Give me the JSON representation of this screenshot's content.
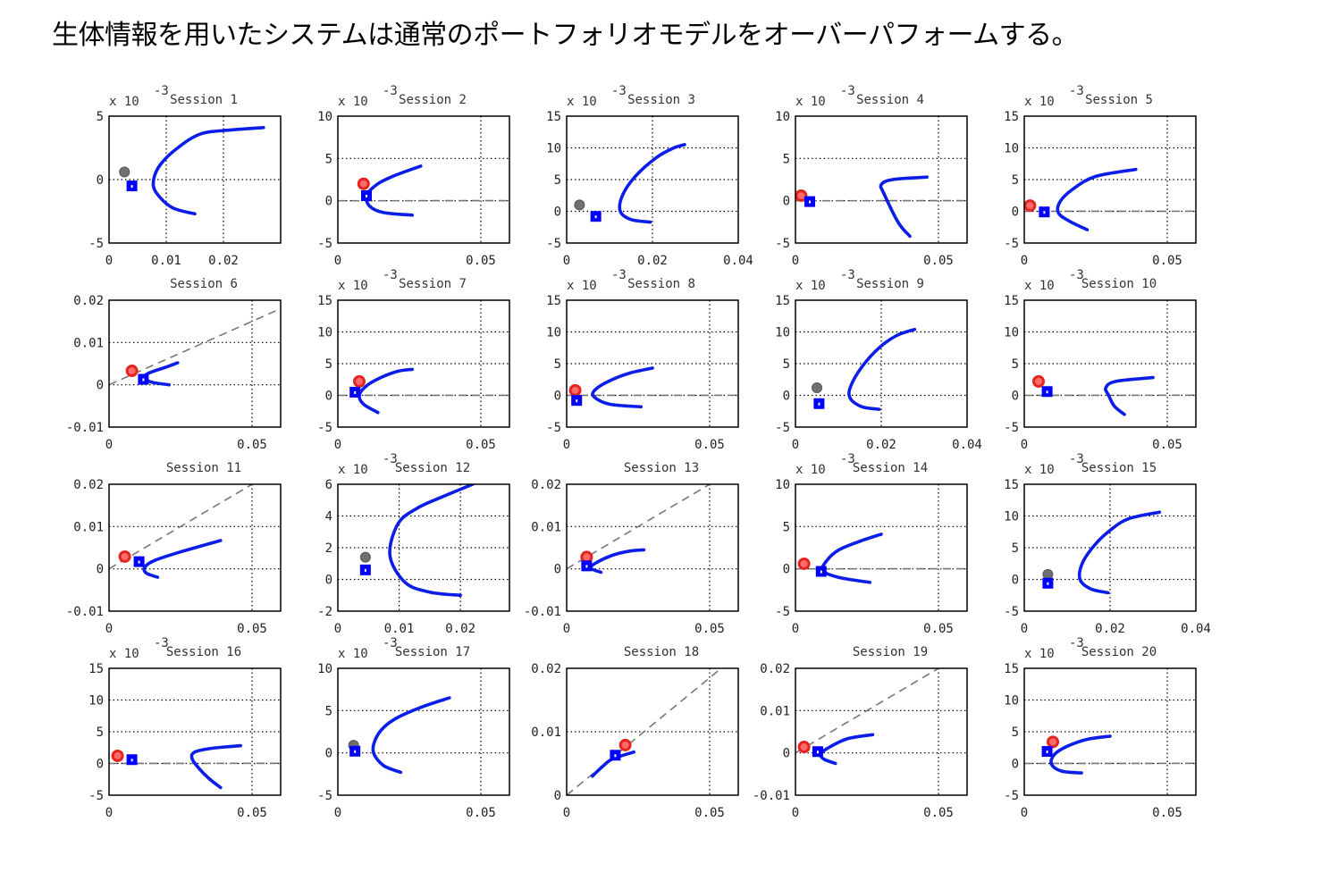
{
  "page": {
    "title": "生体情報を用いたシステムは通常のポートフォリオモデルをオーバーパフォームする。"
  },
  "colors": {
    "frontier": "#0a1ee8",
    "biometric_marker": "#e52420",
    "conventional_marker": "#707070",
    "portfolio_marker": "#0000ff",
    "reference_line": "#777777"
  },
  "chart_data": [
    {
      "type": "line",
      "title": "Session 1",
      "multiplier": "x 10",
      "exponent": "-3",
      "xlim": [
        0,
        0.03
      ],
      "ylim": [
        -5,
        5
      ],
      "xticks": [
        0,
        0.01,
        0.02
      ],
      "yticks": [
        -5,
        0,
        5
      ],
      "ref_slope": null,
      "frontier": [
        [
          0.015,
          -2.7
        ],
        [
          0.011,
          -2.2
        ],
        [
          0.0082,
          -1.0
        ],
        [
          0.0078,
          0
        ],
        [
          0.009,
          1.2
        ],
        [
          0.012,
          2.5
        ],
        [
          0.016,
          3.6
        ],
        [
          0.021,
          3.9
        ],
        [
          0.027,
          4.1
        ]
      ],
      "conventional": [
        0.0027,
        0.6
      ],
      "biometric": null,
      "portfolio": [
        0.004,
        -0.5
      ]
    },
    {
      "type": "line",
      "title": "Session 2",
      "multiplier": "x 10",
      "exponent": "-3",
      "xlim": [
        0,
        0.06
      ],
      "ylim": [
        -5,
        10
      ],
      "xticks": [
        0,
        0.05
      ],
      "yticks": [
        -5,
        0,
        5,
        10
      ],
      "ref_slope": 0.2,
      "frontier": [
        [
          0.026,
          -1.7
        ],
        [
          0.016,
          -1.4
        ],
        [
          0.011,
          -0.6
        ],
        [
          0.0102,
          0.7
        ],
        [
          0.014,
          2.0
        ],
        [
          0.02,
          3.0
        ],
        [
          0.029,
          4.1
        ]
      ],
      "conventional": null,
      "biometric": [
        0.009,
        2.0
      ],
      "portfolio": [
        0.01,
        0.6
      ]
    },
    {
      "type": "line",
      "title": "Session 3",
      "multiplier": "x 10",
      "exponent": "-3",
      "xlim": [
        0,
        0.04
      ],
      "ylim": [
        -5,
        15
      ],
      "xticks": [
        0,
        0.02,
        0.04
      ],
      "yticks": [
        -5,
        0,
        5,
        10,
        15
      ],
      "ref_slope": null,
      "frontier": [
        [
          0.0195,
          -1.7
        ],
        [
          0.015,
          -1.3
        ],
        [
          0.0125,
          0
        ],
        [
          0.013,
          2.5
        ],
        [
          0.016,
          5.5
        ],
        [
          0.021,
          8.5
        ],
        [
          0.025,
          10.0
        ],
        [
          0.0275,
          10.5
        ]
      ],
      "conventional": [
        0.003,
        1.0
      ],
      "biometric": null,
      "portfolio": [
        0.0068,
        -0.8
      ]
    },
    {
      "type": "line",
      "title": "Session 4",
      "multiplier": "x 10",
      "exponent": "-3",
      "xlim": [
        0,
        0.06
      ],
      "ylim": [
        -5,
        10
      ],
      "xticks": [
        0,
        0.05
      ],
      "yticks": [
        -5,
        0,
        5,
        10
      ],
      "ref_slope": 0.2,
      "frontier": [
        [
          0.04,
          -4.2
        ],
        [
          0.036,
          -2.6
        ],
        [
          0.031,
          0.8
        ],
        [
          0.03,
          1.9
        ],
        [
          0.034,
          2.5
        ],
        [
          0.046,
          2.8
        ]
      ],
      "conventional": null,
      "biometric": [
        0.002,
        0.6
      ],
      "portfolio": [
        0.005,
        -0.1
      ]
    },
    {
      "type": "line",
      "title": "Session 5",
      "multiplier": "x 10",
      "exponent": "-3",
      "xlim": [
        0,
        0.06
      ],
      "ylim": [
        -5,
        15
      ],
      "xticks": [
        0,
        0.05
      ],
      "yticks": [
        -5,
        0,
        5,
        10,
        15
      ],
      "ref_slope": 0.3,
      "frontier": [
        [
          0.022,
          -2.9
        ],
        [
          0.016,
          -1.6
        ],
        [
          0.012,
          -0.3
        ],
        [
          0.0125,
          1.5
        ],
        [
          0.017,
          3.5
        ],
        [
          0.025,
          5.5
        ],
        [
          0.039,
          6.6
        ]
      ],
      "conventional": null,
      "biometric": [
        0.002,
        0.9
      ],
      "portfolio": [
        0.007,
        -0.1
      ]
    },
    {
      "type": "line",
      "title": "Session 6",
      "multiplier": "",
      "exponent": "",
      "xlim": [
        0,
        0.06
      ],
      "ylim": [
        -0.01,
        0.02
      ],
      "xticks": [
        0,
        0.05
      ],
      "yticks": [
        -0.01,
        0,
        0.01,
        0.02
      ],
      "ref_slope": 0.3,
      "frontier": [
        [
          0.021,
          0
        ],
        [
          0.015,
          0.0006
        ],
        [
          0.012,
          0.0016
        ],
        [
          0.014,
          0.0028
        ],
        [
          0.02,
          0.0042
        ],
        [
          0.024,
          0.0052
        ]
      ],
      "conventional": null,
      "biometric": [
        0.008,
        0.0033
      ],
      "portfolio": [
        0.012,
        0.0013
      ]
    },
    {
      "type": "line",
      "title": "Session 7",
      "multiplier": "x 10",
      "exponent": "-3",
      "xlim": [
        0,
        0.06
      ],
      "ylim": [
        -5,
        15
      ],
      "xticks": [
        0,
        0.05
      ],
      "yticks": [
        -5,
        0,
        5,
        10,
        15
      ],
      "ref_slope": 0.25,
      "frontier": [
        [
          0.014,
          -2.7
        ],
        [
          0.009,
          -1.4
        ],
        [
          0.0075,
          0
        ],
        [
          0.01,
          1.5
        ],
        [
          0.015,
          2.8
        ],
        [
          0.021,
          3.8
        ],
        [
          0.026,
          4.1
        ]
      ],
      "conventional": null,
      "biometric": [
        0.0075,
        2.2
      ],
      "portfolio": [
        0.006,
        0.5
      ]
    },
    {
      "type": "line",
      "title": "Session 8",
      "multiplier": "x 10",
      "exponent": "-3",
      "xlim": [
        0,
        0.06
      ],
      "ylim": [
        -5,
        15
      ],
      "xticks": [
        0,
        0.05
      ],
      "yticks": [
        -5,
        0,
        5,
        10,
        15
      ],
      "ref_slope": 0.3,
      "frontier": [
        [
          0.026,
          -1.8
        ],
        [
          0.015,
          -1.4
        ],
        [
          0.0095,
          -0.2
        ],
        [
          0.01,
          0.9
        ],
        [
          0.015,
          2.3
        ],
        [
          0.022,
          3.5
        ],
        [
          0.03,
          4.3
        ]
      ],
      "conventional": null,
      "biometric": [
        0.003,
        0.8
      ],
      "portfolio": [
        0.0035,
        -0.8
      ]
    },
    {
      "type": "line",
      "title": "Session 9",
      "multiplier": "x 10",
      "exponent": "-3",
      "xlim": [
        0,
        0.04
      ],
      "ylim": [
        -5,
        15
      ],
      "xticks": [
        0,
        0.02,
        0.04
      ],
      "yticks": [
        -5,
        0,
        5,
        10,
        15
      ],
      "ref_slope": null,
      "frontier": [
        [
          0.0195,
          -2.2
        ],
        [
          0.0155,
          -1.8
        ],
        [
          0.0128,
          -0.5
        ],
        [
          0.0128,
          1.3
        ],
        [
          0.0155,
          4.5
        ],
        [
          0.0195,
          7.5
        ],
        [
          0.0235,
          9.4
        ],
        [
          0.0278,
          10.4
        ]
      ],
      "conventional": [
        0.005,
        1.2
      ],
      "biometric": null,
      "portfolio": [
        0.0055,
        -1.3
      ]
    },
    {
      "type": "line",
      "title": "Session 10",
      "multiplier": "x 10",
      "exponent": "-3",
      "xlim": [
        0,
        0.06
      ],
      "ylim": [
        -5,
        15
      ],
      "xticks": [
        0,
        0.05
      ],
      "yticks": [
        -5,
        0,
        5,
        10,
        15
      ],
      "ref_slope": 0.4,
      "frontier": [
        [
          0.035,
          -3.0
        ],
        [
          0.0315,
          -1.7
        ],
        [
          0.0295,
          0
        ],
        [
          0.0285,
          1.2
        ],
        [
          0.032,
          2.2
        ],
        [
          0.045,
          2.8
        ]
      ],
      "conventional": null,
      "biometric": [
        0.005,
        2.2
      ],
      "portfolio": [
        0.008,
        0.6
      ]
    },
    {
      "type": "line",
      "title": "Session 11",
      "multiplier": "",
      "exponent": "",
      "xlim": [
        0,
        0.06
      ],
      "ylim": [
        -0.01,
        0.02
      ],
      "xticks": [
        0,
        0.05
      ],
      "yticks": [
        -0.01,
        0,
        0.01,
        0.02
      ],
      "ref_slope": 0.4,
      "frontier": [
        [
          0.017,
          -0.002
        ],
        [
          0.013,
          -0.001
        ],
        [
          0.0125,
          0.0004
        ],
        [
          0.016,
          0.002
        ],
        [
          0.025,
          0.004
        ],
        [
          0.039,
          0.0067
        ]
      ],
      "conventional": null,
      "biometric": [
        0.0055,
        0.0029
      ],
      "portfolio": [
        0.0105,
        0.0017
      ]
    },
    {
      "type": "line",
      "title": "Session 12",
      "multiplier": "x 10",
      "exponent": "-3",
      "xlim": [
        0,
        0.028
      ],
      "ylim": [
        -2,
        6
      ],
      "xticks": [
        0,
        0.01,
        0.02
      ],
      "yticks": [
        -2,
        0,
        2,
        4,
        6
      ],
      "ref_slope": null,
      "frontier": [
        [
          0.02,
          -1.0
        ],
        [
          0.015,
          -0.8
        ],
        [
          0.011,
          -0.2
        ],
        [
          0.0085,
          1.5
        ],
        [
          0.0098,
          3.5
        ],
        [
          0.013,
          4.5
        ],
        [
          0.017,
          5.2
        ],
        [
          0.022,
          6.0
        ]
      ],
      "conventional": [
        0.0045,
        1.4
      ],
      "biometric": null,
      "portfolio": [
        0.0045,
        0.6
      ]
    },
    {
      "type": "line",
      "title": "Session 13",
      "multiplier": "",
      "exponent": "",
      "xlim": [
        0,
        0.06
      ],
      "ylim": [
        -0.01,
        0.02
      ],
      "xticks": [
        0,
        0.05
      ],
      "yticks": [
        -0.01,
        0,
        0.01,
        0.02
      ],
      "ref_slope": 0.4,
      "frontier": [
        [
          0.012,
          -0.0008
        ],
        [
          0.0085,
          0.0001
        ],
        [
          0.01,
          0.0013
        ],
        [
          0.016,
          0.0032
        ],
        [
          0.022,
          0.0042
        ],
        [
          0.027,
          0.0045
        ]
      ],
      "conventional": null,
      "biometric": [
        0.007,
        0.0028
      ],
      "portfolio": [
        0.007,
        0.0007
      ]
    },
    {
      "type": "line",
      "title": "Session 14",
      "multiplier": "x 10",
      "exponent": "-3",
      "xlim": [
        0,
        0.06
      ],
      "ylim": [
        -5,
        10
      ],
      "xticks": [
        0,
        0.05
      ],
      "yticks": [
        -5,
        0,
        5,
        10
      ],
      "ref_slope": 0.2,
      "frontier": [
        [
          0.026,
          -1.6
        ],
        [
          0.015,
          -1.0
        ],
        [
          0.0095,
          -0.2
        ],
        [
          0.011,
          1.0
        ],
        [
          0.015,
          2.2
        ],
        [
          0.022,
          3.2
        ],
        [
          0.03,
          4.1
        ]
      ],
      "conventional": null,
      "biometric": [
        0.003,
        0.6
      ],
      "portfolio": [
        0.009,
        -0.3
      ]
    },
    {
      "type": "line",
      "title": "Session 15",
      "multiplier": "x 10",
      "exponent": "-3",
      "xlim": [
        0,
        0.04
      ],
      "ylim": [
        -5,
        15
      ],
      "xticks": [
        0,
        0.02,
        0.04
      ],
      "yticks": [
        -5,
        0,
        5,
        10,
        15
      ],
      "ref_slope": null,
      "frontier": [
        [
          0.0195,
          -2.1
        ],
        [
          0.0155,
          -1.5
        ],
        [
          0.013,
          0
        ],
        [
          0.0135,
          2.5
        ],
        [
          0.0165,
          5.5
        ],
        [
          0.0205,
          8.0
        ],
        [
          0.0245,
          9.6
        ],
        [
          0.0315,
          10.6
        ]
      ],
      "conventional": [
        0.0055,
        0.8
      ],
      "biometric": null,
      "portfolio": [
        0.0055,
        -0.6
      ]
    },
    {
      "type": "line",
      "title": "Session 16",
      "multiplier": "x 10",
      "exponent": "-3",
      "xlim": [
        0,
        0.06
      ],
      "ylim": [
        -5,
        15
      ],
      "xticks": [
        0,
        0.05
      ],
      "yticks": [
        -5,
        0,
        5,
        10,
        15
      ],
      "ref_slope": 0.45,
      "frontier": [
        [
          0.039,
          -3.8
        ],
        [
          0.035,
          -2.4
        ],
        [
          0.0315,
          -0.8
        ],
        [
          0.029,
          0.8
        ],
        [
          0.03,
          1.8
        ],
        [
          0.036,
          2.4
        ],
        [
          0.046,
          2.8
        ]
      ],
      "conventional": null,
      "biometric": [
        0.003,
        1.2
      ],
      "portfolio": [
        0.008,
        0.6
      ]
    },
    {
      "type": "line",
      "title": "Session 17",
      "multiplier": "x 10",
      "exponent": "-3",
      "xlim": [
        0,
        0.06
      ],
      "ylim": [
        -5,
        10
      ],
      "xticks": [
        0,
        0.05
      ],
      "yticks": [
        -5,
        0,
        5,
        10
      ],
      "ref_slope": null,
      "frontier": [
        [
          0.022,
          -2.3
        ],
        [
          0.016,
          -1.5
        ],
        [
          0.0125,
          0
        ],
        [
          0.013,
          1.5
        ],
        [
          0.016,
          3.0
        ],
        [
          0.021,
          4.2
        ],
        [
          0.03,
          5.5
        ],
        [
          0.039,
          6.5
        ]
      ],
      "conventional": [
        0.0055,
        0.9
      ],
      "biometric": null,
      "portfolio": [
        0.006,
        0.2
      ]
    },
    {
      "type": "line",
      "title": "Session 18",
      "multiplier": "",
      "exponent": "",
      "xlim": [
        0,
        0.06
      ],
      "ylim": [
        0,
        0.02
      ],
      "xticks": [
        0,
        0.05
      ],
      "yticks": [
        0,
        0.01,
        0.02
      ],
      "ref_slope": 0.37,
      "frontier": [
        [
          0.009,
          0.003
        ],
        [
          0.0125,
          0.0045
        ],
        [
          0.016,
          0.0057
        ],
        [
          0.0235,
          0.0068
        ]
      ],
      "conventional": null,
      "biometric": [
        0.0205,
        0.0079
      ],
      "portfolio": [
        0.017,
        0.0063
      ]
    },
    {
      "type": "line",
      "title": "Session 19",
      "multiplier": "",
      "exponent": "",
      "xlim": [
        0,
        0.06
      ],
      "ylim": [
        -0.01,
        0.02
      ],
      "xticks": [
        0,
        0.05
      ],
      "yticks": [
        -0.01,
        0,
        0.01,
        0.02
      ],
      "ref_slope": 0.4,
      "frontier": [
        [
          0.014,
          -0.0025
        ],
        [
          0.01,
          -0.0015
        ],
        [
          0.0088,
          -0.0003
        ],
        [
          0.011,
          0.001
        ],
        [
          0.018,
          0.0033
        ],
        [
          0.027,
          0.0043
        ]
      ],
      "conventional": null,
      "biometric": [
        0.003,
        0.0014
      ],
      "portfolio": [
        0.0078,
        0.0003
      ]
    },
    {
      "type": "line",
      "title": "Session 20",
      "multiplier": "x 10",
      "exponent": "-3",
      "xlim": [
        0,
        0.06
      ],
      "ylim": [
        -5,
        15
      ],
      "xticks": [
        0,
        0.05
      ],
      "yticks": [
        -5,
        0,
        5,
        10,
        15
      ],
      "ref_slope": 0.35,
      "frontier": [
        [
          0.02,
          -1.5
        ],
        [
          0.013,
          -1.2
        ],
        [
          0.0095,
          -0.1
        ],
        [
          0.0105,
          1.4
        ],
        [
          0.015,
          2.7
        ],
        [
          0.022,
          3.8
        ],
        [
          0.03,
          4.3
        ]
      ],
      "conventional": null,
      "biometric": [
        0.01,
        3.4
      ],
      "portfolio": [
        0.008,
        1.9
      ]
    }
  ]
}
